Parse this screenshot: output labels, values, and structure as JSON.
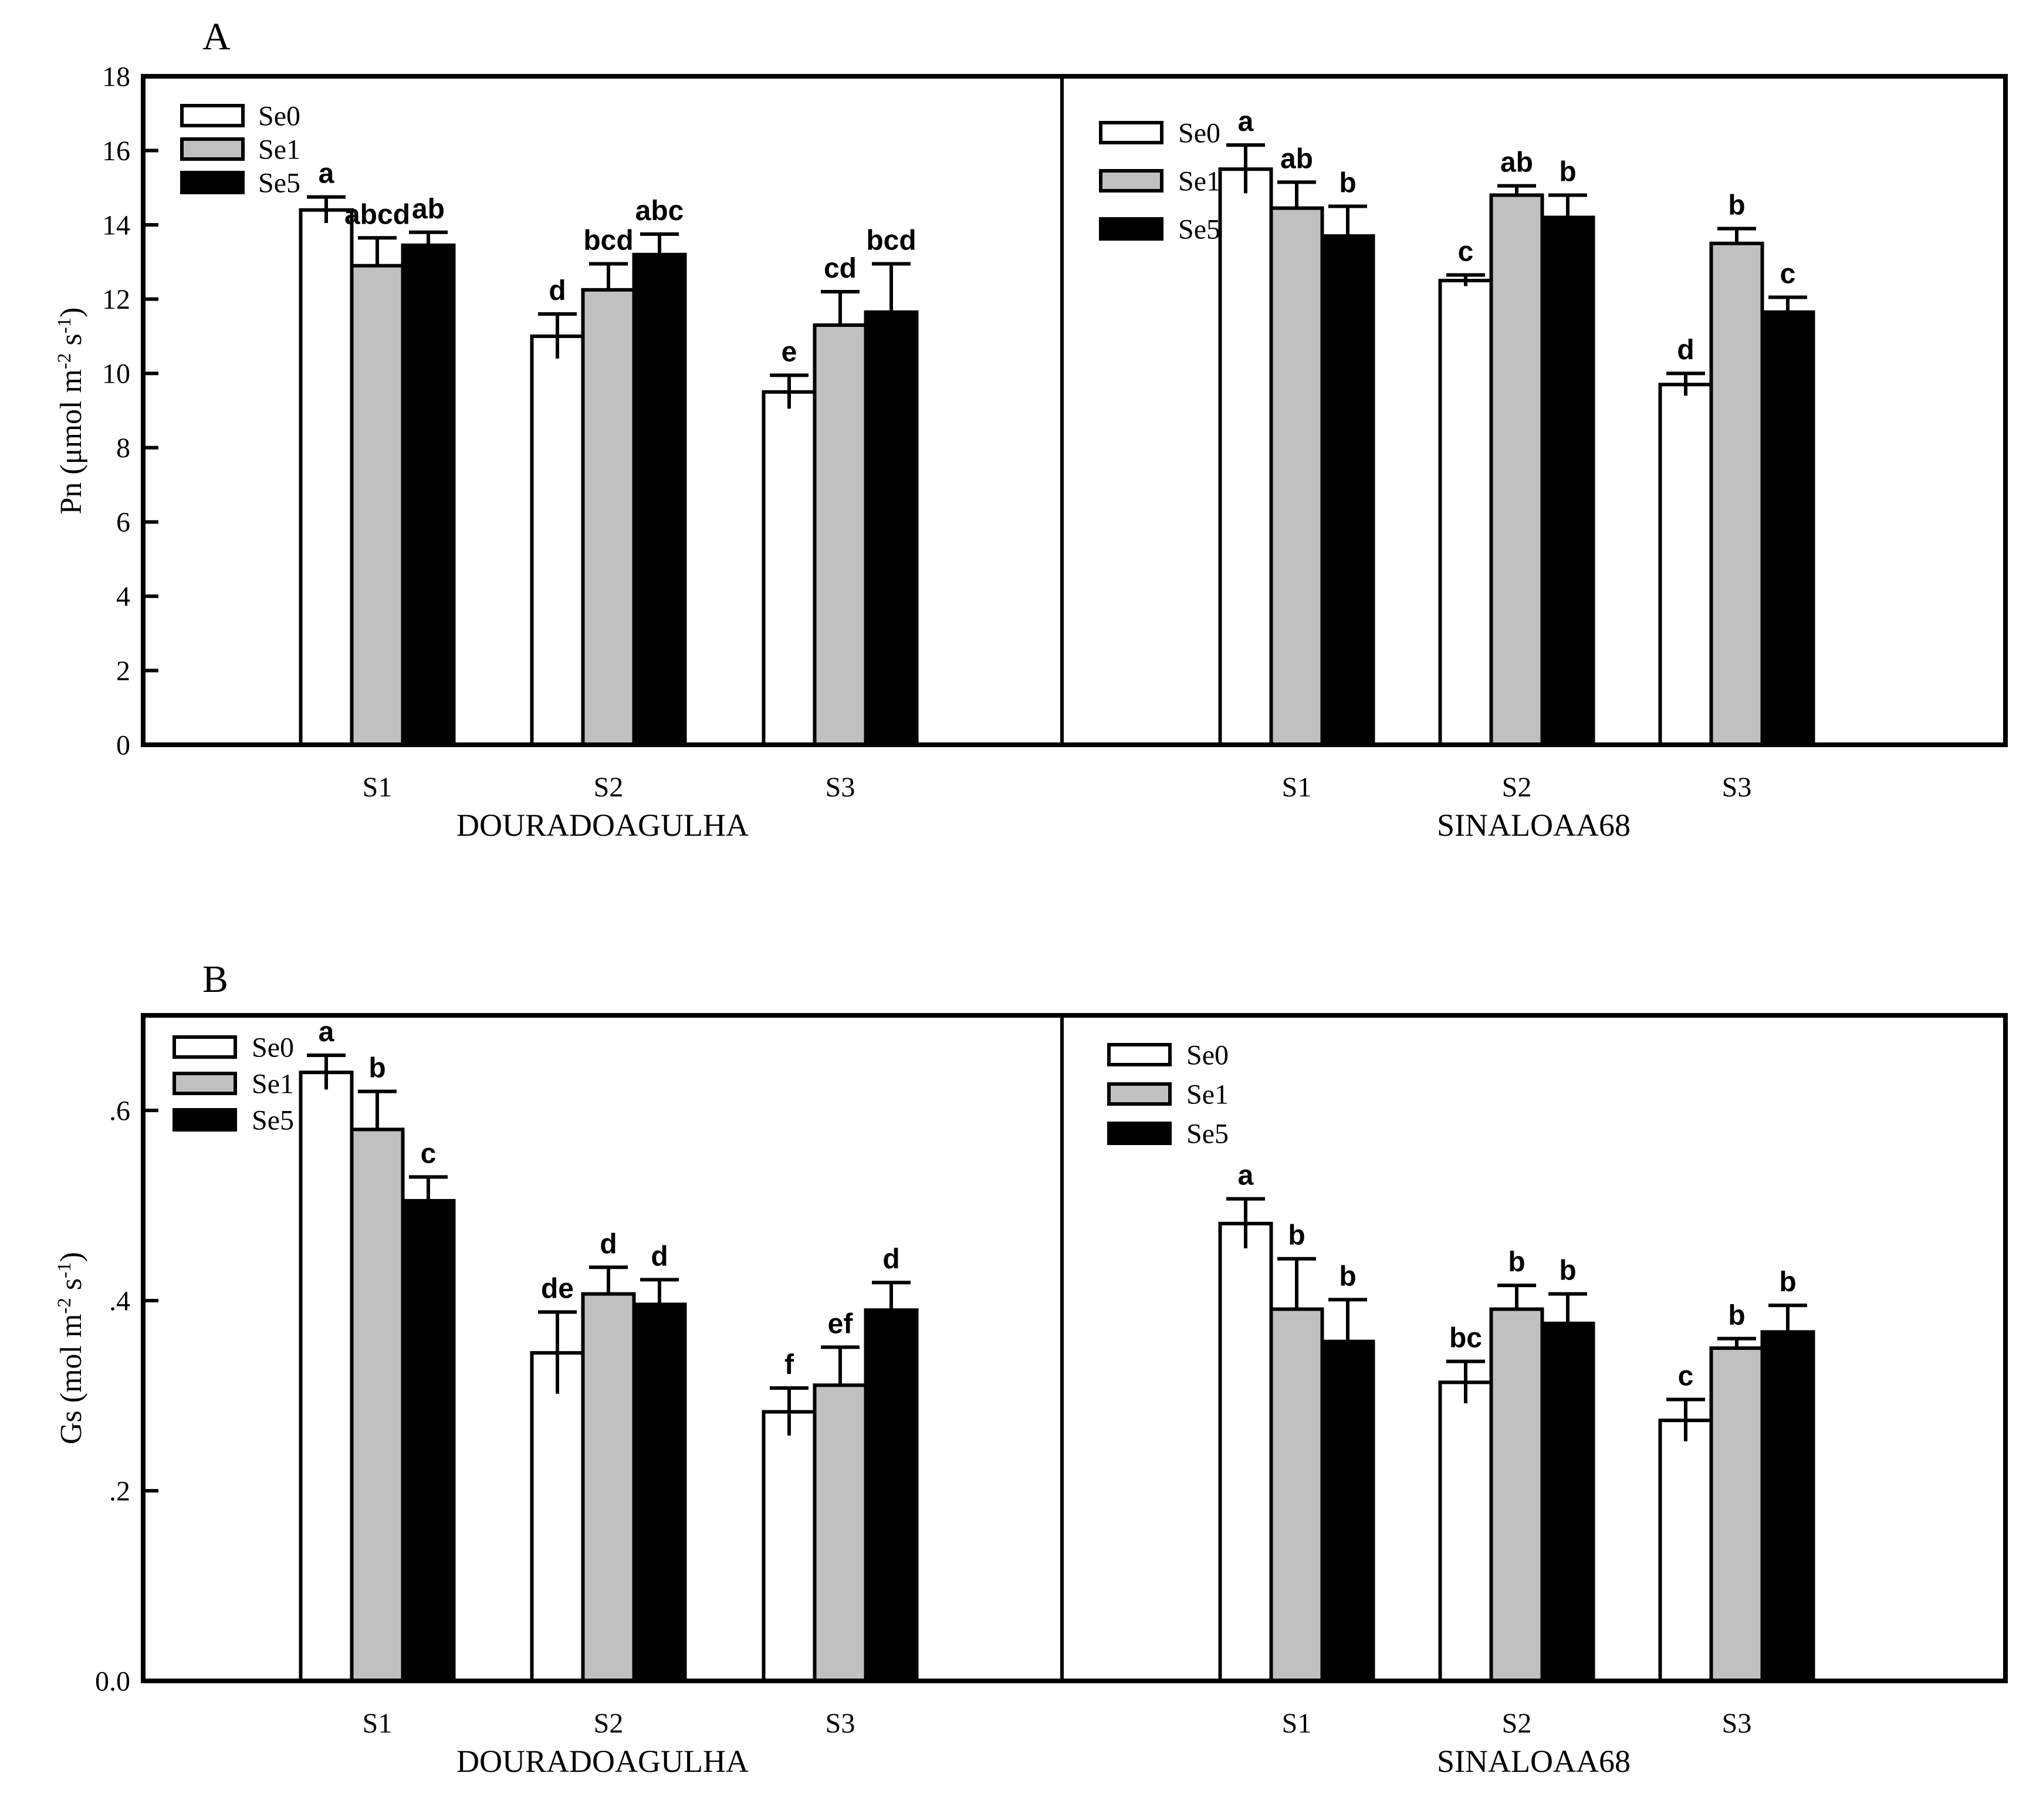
{
  "chart_data": [
    {
      "type": "bar",
      "panel_label": "A",
      "ylabel_parts": [
        {
          "text": "Pn (μmol m",
          "sup": false
        },
        {
          "text": "-2",
          "sup": true
        },
        {
          "text": " s",
          "sup": false
        },
        {
          "text": "-1",
          "sup": true
        },
        {
          "text": ")",
          "sup": false
        }
      ],
      "ylim": [
        0,
        18
      ],
      "yticks": [
        {
          "value": 0,
          "label": "0"
        },
        {
          "value": 2,
          "label": "2"
        },
        {
          "value": 4,
          "label": "4"
        },
        {
          "value": 6,
          "label": "6"
        },
        {
          "value": 8,
          "label": "8"
        },
        {
          "value": 10,
          "label": "10"
        },
        {
          "value": 12,
          "label": "12"
        },
        {
          "value": 14,
          "label": "14"
        },
        {
          "value": 16,
          "label": "16"
        },
        {
          "value": 18,
          "label": "18"
        }
      ],
      "legend": [
        "Se0",
        "Se1",
        "Se5"
      ],
      "series_styles": [
        {
          "name": "Se0",
          "fill": "#ffffff"
        },
        {
          "name": "Se1",
          "fill": "#c0c0c0"
        },
        {
          "name": "Se5",
          "fill": "#000000"
        }
      ],
      "grid": false,
      "legend_position": "top-left-inside-each-subplot",
      "subplots": [
        {
          "title": "DOURADOAGULHA",
          "categories": [
            "S1",
            "S2",
            "S3"
          ],
          "series": [
            {
              "name": "Se0",
              "values": [
                14.4,
                11.0,
                9.5
              ],
              "errors": [
                0.35,
                0.6,
                0.45
              ],
              "sig_letters": [
                "a",
                "d",
                "e"
              ]
            },
            {
              "name": "Se1",
              "values": [
                12.9,
                12.25,
                11.3
              ],
              "errors": [
                0.75,
                0.7,
                0.9
              ],
              "sig_letters": [
                "abcd",
                "bcd",
                "cd"
              ]
            },
            {
              "name": "Se5",
              "values": [
                13.45,
                13.2,
                11.65
              ],
              "errors": [
                0.35,
                0.55,
                1.3
              ],
              "sig_letters": [
                "ab",
                "abc",
                "bcd"
              ]
            }
          ]
        },
        {
          "title": "SINALOAA68",
          "categories": [
            "S1",
            "S2",
            "S3"
          ],
          "series": [
            {
              "name": "Se0",
              "values": [
                15.5,
                12.5,
                9.7
              ],
              "errors": [
                0.65,
                0.15,
                0.3
              ],
              "sig_letters": [
                "a",
                "c",
                "d"
              ]
            },
            {
              "name": "Se1",
              "values": [
                14.45,
                14.8,
                13.5
              ],
              "errors": [
                0.7,
                0.25,
                0.4
              ],
              "sig_letters": [
                "ab",
                "ab",
                "b"
              ]
            },
            {
              "name": "Se5",
              "values": [
                13.7,
                14.2,
                11.65
              ],
              "errors": [
                0.8,
                0.6,
                0.4
              ],
              "sig_letters": [
                "b",
                "b",
                "c"
              ]
            }
          ]
        }
      ]
    },
    {
      "type": "bar",
      "panel_label": "B",
      "ylabel_parts": [
        {
          "text": "Gs (mol m",
          "sup": false
        },
        {
          "text": "-2",
          "sup": true
        },
        {
          "text": " s",
          "sup": false
        },
        {
          "text": "-1",
          "sup": true
        },
        {
          "text": ")",
          "sup": false
        }
      ],
      "ylim": [
        0,
        0.7
      ],
      "yticks": [
        {
          "value": 0,
          "label": "0.0"
        },
        {
          "value": 0.2,
          "label": ".2"
        },
        {
          "value": 0.4,
          "label": ".4"
        },
        {
          "value": 0.6,
          "label": ".6"
        }
      ],
      "legend": [
        "Se0",
        "Se1",
        "Se5"
      ],
      "series_styles": [
        {
          "name": "Se0",
          "fill": "#ffffff"
        },
        {
          "name": "Se1",
          "fill": "#c0c0c0"
        },
        {
          "name": "Se5",
          "fill": "#000000"
        }
      ],
      "grid": false,
      "legend_position": "top-left-inside-each-subplot",
      "subplots": [
        {
          "title": "DOURADOAGULHA",
          "categories": [
            "S1",
            "S2",
            "S3"
          ],
          "series": [
            {
              "name": "Se0",
              "values": [
                0.64,
                0.345,
                0.283
              ],
              "errors": [
                0.018,
                0.043,
                0.025
              ],
              "sig_letters": [
                "a",
                "de",
                "f"
              ]
            },
            {
              "name": "Se1",
              "values": [
                0.58,
                0.407,
                0.311
              ],
              "errors": [
                0.04,
                0.028,
                0.04
              ],
              "sig_letters": [
                "b",
                "d",
                "ef"
              ]
            },
            {
              "name": "Se5",
              "values": [
                0.505,
                0.396,
                0.39
              ],
              "errors": [
                0.025,
                0.026,
                0.029
              ],
              "sig_letters": [
                "c",
                "d",
                "d"
              ]
            }
          ]
        },
        {
          "title": "SINALOAA68",
          "categories": [
            "S1",
            "S2",
            "S3"
          ],
          "series": [
            {
              "name": "Se0",
              "values": [
                0.481,
                0.314,
                0.274
              ],
              "errors": [
                0.026,
                0.022,
                0.022
              ],
              "sig_letters": [
                "a",
                "bc",
                "c"
              ]
            },
            {
              "name": "Se1",
              "values": [
                0.391,
                0.391,
                0.35
              ],
              "errors": [
                0.053,
                0.025,
                0.01
              ],
              "sig_letters": [
                "b",
                "b",
                "b"
              ]
            },
            {
              "name": "Se5",
              "values": [
                0.357,
                0.376,
                0.367
              ],
              "errors": [
                0.044,
                0.031,
                0.028
              ],
              "sig_letters": [
                "b",
                "b",
                "b"
              ]
            }
          ]
        }
      ]
    }
  ]
}
